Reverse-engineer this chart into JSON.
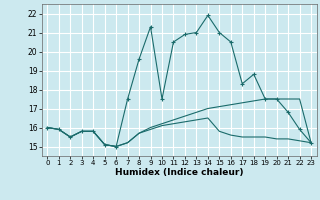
{
  "x": [
    0,
    1,
    2,
    3,
    4,
    5,
    6,
    7,
    8,
    9,
    10,
    11,
    12,
    13,
    14,
    15,
    16,
    17,
    18,
    19,
    20,
    21,
    22,
    23
  ],
  "line1": [
    16.0,
    15.9,
    15.5,
    15.8,
    15.8,
    15.1,
    15.0,
    17.5,
    19.6,
    21.3,
    17.5,
    20.5,
    20.9,
    21.0,
    21.9,
    21.0,
    20.5,
    18.3,
    18.8,
    17.5,
    17.5,
    16.8,
    15.9,
    15.2
  ],
  "line2": [
    16.0,
    15.9,
    15.5,
    15.8,
    15.8,
    15.1,
    15.0,
    15.2,
    15.7,
    15.9,
    16.1,
    16.2,
    16.3,
    16.4,
    16.5,
    15.8,
    15.6,
    15.5,
    15.5,
    15.5,
    15.4,
    15.4,
    15.3,
    15.2
  ],
  "line3": [
    16.0,
    15.9,
    15.5,
    15.8,
    15.8,
    15.1,
    15.0,
    15.2,
    15.7,
    16.0,
    16.2,
    16.4,
    16.6,
    16.8,
    17.0,
    17.1,
    17.2,
    17.3,
    17.4,
    17.5,
    17.5,
    17.5,
    17.5,
    15.2
  ],
  "background_color": "#cce9ef",
  "grid_color": "#ffffff",
  "line_color": "#1a6b6b",
  "xlabel": "Humidex (Indice chaleur)",
  "ylim": [
    14.5,
    22.5
  ],
  "xlim": [
    -0.5,
    23.5
  ],
  "yticks": [
    15,
    16,
    17,
    18,
    19,
    20,
    21,
    22
  ],
  "xticks": [
    0,
    1,
    2,
    3,
    4,
    5,
    6,
    7,
    8,
    9,
    10,
    11,
    12,
    13,
    14,
    15,
    16,
    17,
    18,
    19,
    20,
    21,
    22,
    23
  ]
}
